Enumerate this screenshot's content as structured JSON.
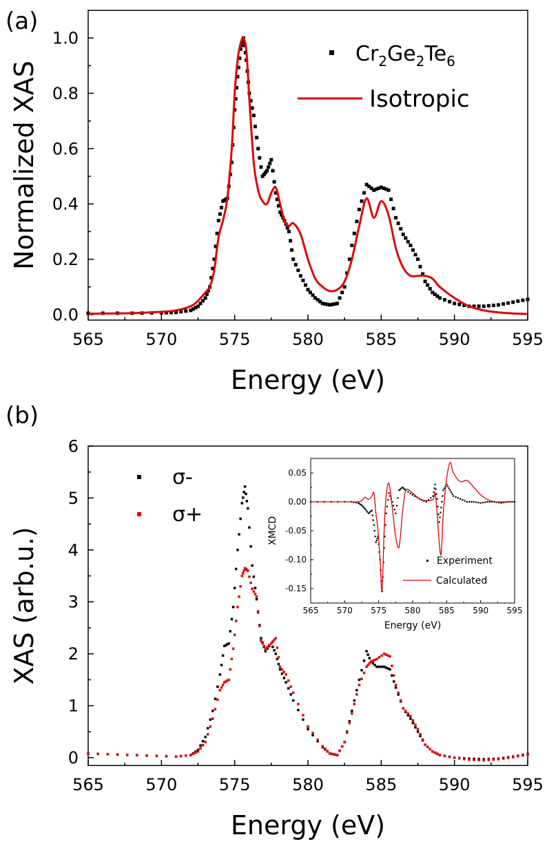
{
  "chart_data": [
    {
      "panel_label": "(a)",
      "type": "line",
      "xlabel": "Energy (eV)",
      "ylabel": "Normalized XAS",
      "xlim": [
        565,
        595
      ],
      "ylim": [
        -0.02,
        1.1
      ],
      "xticks": [
        565,
        570,
        575,
        580,
        585,
        590,
        595
      ],
      "yticks": [
        "0.0",
        "0.2",
        "0.4",
        "0.6",
        "0.8",
        "1.0"
      ],
      "legend": {
        "position": "top-right",
        "entries": [
          {
            "label": "Cr2Ge2Te6",
            "base": "Cr",
            "sub1": "2",
            "mid": "Ge",
            "sub2": "2",
            "mid2": "Te",
            "sub3": "6",
            "style": "markers",
            "color": "#000000"
          },
          {
            "label": "Isotropic",
            "style": "line",
            "color": "#e00000"
          }
        ]
      },
      "series": [
        {
          "name": "Cr2Ge2Te6",
          "style": "markers",
          "color": "#000000",
          "x": [
            565,
            568,
            570,
            571,
            572,
            572.5,
            573,
            573.3,
            573.6,
            573.9,
            574.2,
            574.5,
            574.8,
            575.0,
            575.2,
            575.4,
            575.6,
            575.8,
            576.0,
            576.3,
            576.6,
            576.9,
            577.2,
            577.5,
            577.8,
            578.1,
            578.4,
            578.7,
            579.0,
            579.5,
            580,
            580.5,
            581,
            581.5,
            582,
            582.5,
            583,
            583.5,
            584,
            584.5,
            585,
            585.5,
            586,
            586.5,
            587,
            587.5,
            588,
            588.5,
            589,
            590,
            591,
            592,
            593,
            594,
            595
          ],
          "y": [
            0.005,
            0.005,
            0.006,
            0.008,
            0.015,
            0.03,
            0.06,
            0.1,
            0.2,
            0.34,
            0.41,
            0.42,
            0.55,
            0.74,
            0.86,
            0.96,
            1.0,
            0.92,
            0.8,
            0.72,
            0.6,
            0.5,
            0.52,
            0.56,
            0.44,
            0.37,
            0.34,
            0.3,
            0.2,
            0.14,
            0.09,
            0.06,
            0.04,
            0.035,
            0.04,
            0.1,
            0.25,
            0.38,
            0.47,
            0.45,
            0.46,
            0.45,
            0.35,
            0.29,
            0.25,
            0.2,
            0.12,
            0.08,
            0.06,
            0.04,
            0.03,
            0.03,
            0.035,
            0.045,
            0.055
          ]
        },
        {
          "name": "Isotropic",
          "style": "line",
          "color": "#e00000",
          "x": [
            565,
            568,
            570,
            571,
            572,
            572.5,
            573,
            573.3,
            573.6,
            573.9,
            574.2,
            574.5,
            574.8,
            575.0,
            575.2,
            575.4,
            575.6,
            575.8,
            576.0,
            576.3,
            576.6,
            576.9,
            577.2,
            577.5,
            577.8,
            578.1,
            578.4,
            578.7,
            579.0,
            579.5,
            580,
            580.5,
            581,
            581.5,
            582,
            582.5,
            583,
            583.5,
            584,
            584.5,
            585,
            585.5,
            586,
            586.5,
            587,
            587.5,
            588,
            588.5,
            589,
            590,
            591,
            592,
            593,
            594,
            595
          ],
          "y": [
            0.003,
            0.005,
            0.01,
            0.015,
            0.03,
            0.05,
            0.08,
            0.1,
            0.16,
            0.28,
            0.34,
            0.42,
            0.6,
            0.8,
            0.92,
            0.98,
            1.0,
            0.95,
            0.78,
            0.55,
            0.45,
            0.41,
            0.4,
            0.44,
            0.46,
            0.4,
            0.34,
            0.32,
            0.33,
            0.29,
            0.2,
            0.13,
            0.1,
            0.085,
            0.09,
            0.12,
            0.2,
            0.32,
            0.42,
            0.35,
            0.41,
            0.36,
            0.24,
            0.17,
            0.14,
            0.14,
            0.14,
            0.13,
            0.1,
            0.06,
            0.03,
            0.015,
            0.008,
            0.004,
            0.002
          ]
        }
      ]
    },
    {
      "panel_label": "(b)",
      "type": "scatter",
      "xlabel": "Energy (eV)",
      "ylabel": "XAS (arb.u.)",
      "xlim": [
        565,
        595
      ],
      "ylim": [
        -0.15,
        6
      ],
      "xticks": [
        565,
        570,
        575,
        580,
        585,
        590,
        595
      ],
      "yticks": [
        "0",
        "1",
        "2",
        "3",
        "4",
        "5",
        "6"
      ],
      "legend": {
        "position": "top-left",
        "entries": [
          {
            "label": "σ-",
            "style": "markers",
            "color": "#000000"
          },
          {
            "label": "σ+",
            "style": "markers",
            "color": "#e00000"
          }
        ]
      },
      "series": [
        {
          "name": "σ-",
          "style": "markers",
          "color": "#000000",
          "x": [
            565,
            567,
            569,
            571,
            572,
            572.5,
            573,
            573.5,
            574,
            574.3,
            574.6,
            574.9,
            575.2,
            575.5,
            575.7,
            575.9,
            576.2,
            576.5,
            576.8,
            577.1,
            577.5,
            577.8,
            578.1,
            578.5,
            579,
            580,
            581,
            581.5,
            582,
            582.5,
            583,
            583.5,
            584,
            584.3,
            584.7,
            585.2,
            585.6,
            586,
            586.5,
            587,
            587.5,
            588,
            588.5,
            589,
            590,
            591,
            592,
            593,
            594,
            595
          ],
          "y": [
            0.08,
            0.06,
            0.04,
            0.02,
            0.05,
            0.15,
            0.4,
            0.9,
            1.6,
            2.15,
            2.2,
            2.9,
            4.0,
            4.9,
            5.22,
            4.8,
            3.7,
            3.05,
            2.3,
            2.05,
            2.2,
            2.0,
            1.7,
            1.45,
            1.1,
            0.55,
            0.2,
            0.08,
            0.05,
            0.3,
            0.9,
            1.5,
            2.05,
            1.85,
            1.75,
            1.75,
            1.7,
            1.35,
            0.95,
            0.75,
            0.5,
            0.25,
            0.12,
            0.05,
            0.0,
            -0.02,
            -0.03,
            -0.02,
            0.02,
            0.07
          ]
        },
        {
          "name": "σ+",
          "style": "markers",
          "color": "#e00000",
          "x": [
            565,
            567,
            569,
            571,
            572,
            572.5,
            573,
            573.5,
            574,
            574.3,
            574.6,
            574.9,
            575.2,
            575.5,
            575.7,
            575.9,
            576.2,
            576.5,
            576.8,
            577.1,
            577.5,
            577.8,
            578.1,
            578.5,
            579,
            580,
            581,
            581.5,
            582,
            582.5,
            583,
            583.5,
            584,
            584.3,
            584.7,
            585.2,
            585.6,
            586,
            586.5,
            587,
            587.5,
            588,
            588.5,
            589,
            590,
            591,
            592,
            593,
            594,
            595
          ],
          "y": [
            0.08,
            0.06,
            0.04,
            0.02,
            0.05,
            0.12,
            0.3,
            0.75,
            1.3,
            1.45,
            1.5,
            2.1,
            2.9,
            3.5,
            3.65,
            3.6,
            3.25,
            3.1,
            2.25,
            2.1,
            2.2,
            2.3,
            1.75,
            1.6,
            1.25,
            0.6,
            0.22,
            0.08,
            0.05,
            0.3,
            0.85,
            1.4,
            1.75,
            1.85,
            1.9,
            2.0,
            1.95,
            1.4,
            0.95,
            0.8,
            0.55,
            0.25,
            0.12,
            0.05,
            0.0,
            -0.04,
            -0.05,
            -0.03,
            0.01,
            0.06
          ]
        }
      ]
    },
    {
      "panel_label": "",
      "inset_of": "(b)",
      "type": "line",
      "xlabel": "Energy (eV)",
      "ylabel": "XMCD",
      "xlim": [
        565,
        595
      ],
      "ylim": [
        -0.175,
        0.075
      ],
      "xticks": [
        565,
        570,
        575,
        580,
        585,
        590,
        595
      ],
      "yticks": [
        "0.05",
        "0.00",
        "-0.05",
        "-0.10",
        "-0.15"
      ],
      "legend": {
        "position": "bottom-right",
        "entries": [
          {
            "label": "Experiment",
            "style": "markers",
            "color": "#000000"
          },
          {
            "label": "Calculated",
            "style": "line",
            "color": "#e00000"
          }
        ]
      },
      "series": [
        {
          "name": "Experiment",
          "style": "markers",
          "color": "#000000",
          "x": [
            565,
            568,
            571,
            572,
            572.5,
            573,
            573.5,
            574,
            574.3,
            574.6,
            574.9,
            575.2,
            575.5,
            575.8,
            576.1,
            576.5,
            577,
            577.5,
            578,
            578.5,
            579,
            580,
            581,
            582,
            583,
            583.3,
            583.6,
            583.9,
            584.2,
            584.5,
            585,
            585.5,
            586,
            587,
            588,
            589,
            590,
            591,
            592,
            593,
            594,
            595
          ],
          "y": [
            0.0,
            0.0,
            0.0,
            -0.002,
            -0.006,
            -0.012,
            -0.02,
            -0.015,
            -0.04,
            -0.07,
            -0.06,
            -0.1,
            -0.155,
            -0.08,
            -0.02,
            0.015,
            0.0,
            -0.02,
            0.02,
            0.025,
            0.02,
            0.012,
            0.005,
            0.0,
            0.01,
            0.03,
            0.005,
            -0.035,
            -0.01,
            0.02,
            0.03,
            0.02,
            0.01,
            0.005,
            0.0,
            0.0,
            -0.002,
            0.0,
            0.0,
            -0.002,
            0.0,
            0.0
          ]
        },
        {
          "name": "Calculated",
          "style": "line",
          "color": "#e00000",
          "x": [
            565,
            568,
            571,
            572,
            572.5,
            573,
            573.5,
            574,
            574.3,
            574.6,
            574.9,
            575.2,
            575.5,
            575.8,
            576.1,
            576.5,
            577,
            577.5,
            578,
            578.5,
            579,
            580,
            581,
            582,
            583,
            583.3,
            583.6,
            583.9,
            584.2,
            584.5,
            585,
            585.5,
            586,
            587,
            588,
            589,
            590,
            591,
            592,
            593,
            594,
            595
          ],
          "y": [
            0.0,
            0.0,
            0.0,
            0.0,
            0.002,
            0.008,
            0.004,
            0.01,
            0.015,
            -0.02,
            -0.05,
            -0.1,
            -0.153,
            -0.05,
            0.01,
            0.032,
            -0.01,
            -0.06,
            -0.078,
            -0.02,
            0.02,
            0.015,
            0.005,
            0.002,
            0.004,
            0.015,
            -0.02,
            -0.07,
            -0.09,
            -0.02,
            0.04,
            0.068,
            0.05,
            0.035,
            0.037,
            0.025,
            0.012,
            0.004,
            0.0,
            0.0,
            0.0,
            0.0
          ]
        }
      ]
    }
  ]
}
